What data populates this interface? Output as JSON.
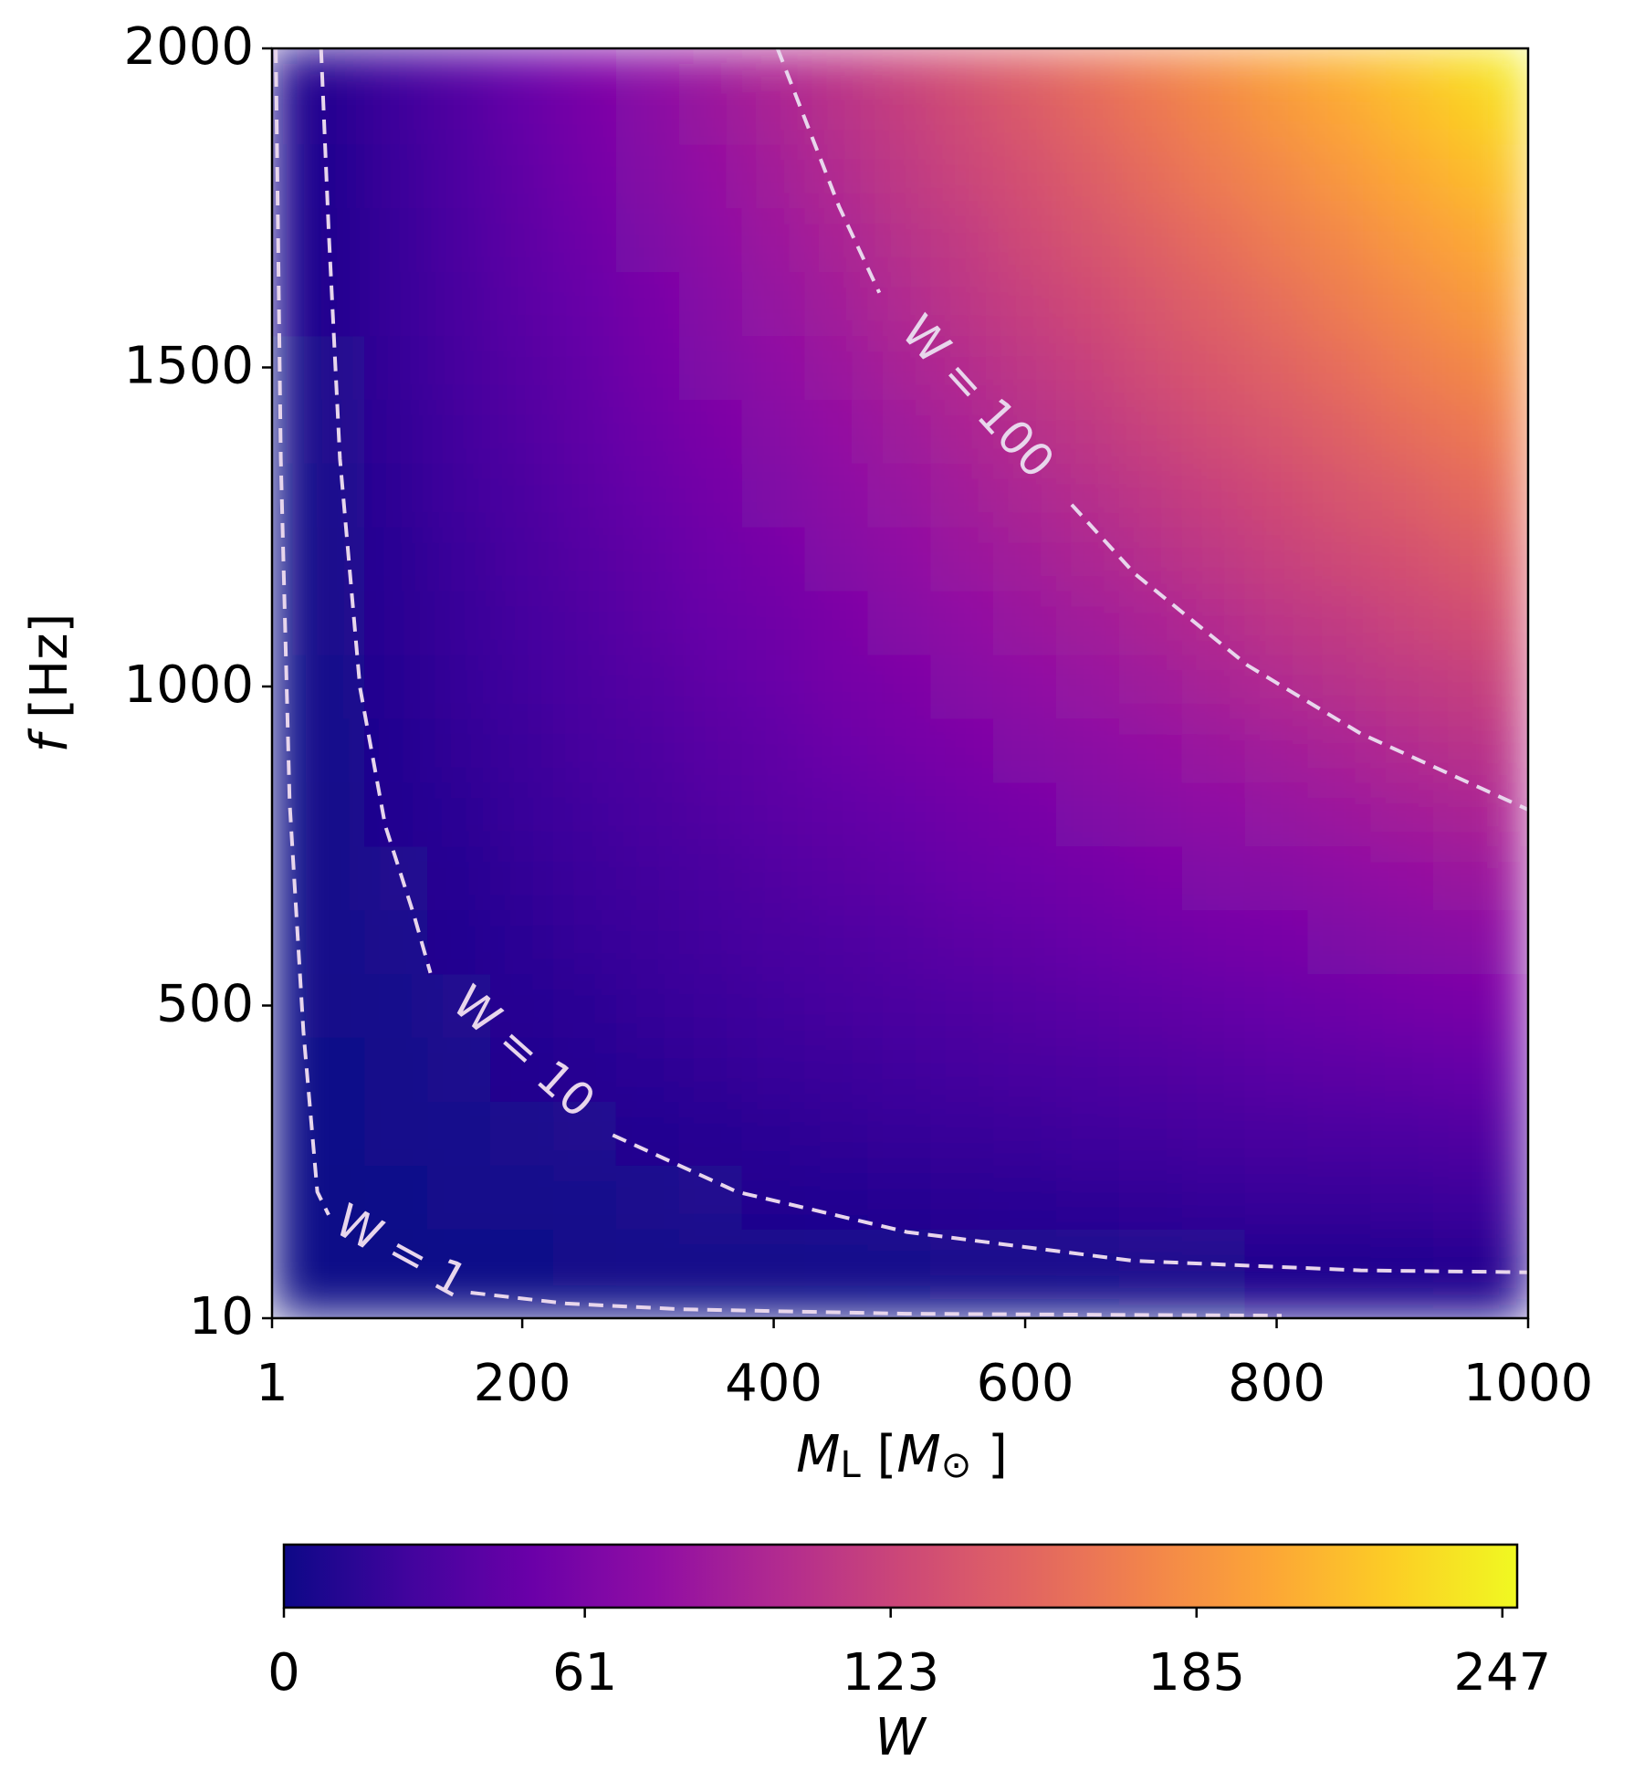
{
  "chart_data": {
    "type": "contour",
    "x": [
      1,
      50,
      100,
      150,
      200,
      250,
      300,
      350,
      400,
      450,
      500,
      550,
      600,
      650,
      700,
      750,
      800,
      850,
      900,
      950,
      1000
    ],
    "y": [
      10,
      100,
      200,
      300,
      400,
      500,
      600,
      700,
      800,
      900,
      1000,
      1100,
      1200,
      1300,
      1400,
      1500,
      1600,
      1700,
      1800,
      1900,
      2000
    ],
    "z": [
      [
        0,
        0,
        0,
        0,
        0,
        0,
        0,
        0,
        0,
        0,
        1,
        1,
        1,
        1,
        1,
        1,
        1,
        1,
        1,
        1,
        1
      ],
      [
        0,
        1,
        1,
        2,
        2,
        3,
        4,
        4,
        5,
        6,
        6,
        7,
        7,
        8,
        9,
        9,
        10,
        10,
        11,
        12,
        12
      ],
      [
        0,
        1,
        2,
        4,
        5,
        6,
        7,
        9,
        10,
        11,
        12,
        14,
        15,
        16,
        17,
        19,
        20,
        21,
        22,
        23,
        25
      ],
      [
        0,
        2,
        4,
        6,
        7,
        9,
        11,
        13,
        15,
        17,
        19,
        20,
        22,
        24,
        26,
        28,
        30,
        31,
        33,
        35,
        37
      ],
      [
        0,
        2,
        5,
        7,
        10,
        12,
        15,
        17,
        20,
        22,
        25,
        27,
        30,
        32,
        35,
        37,
        40,
        42,
        44,
        47,
        49
      ],
      [
        0,
        3,
        6,
        9,
        12,
        15,
        19,
        22,
        25,
        28,
        31,
        34,
        37,
        40,
        43,
        46,
        49,
        52,
        56,
        59,
        62
      ],
      [
        0,
        4,
        7,
        11,
        15,
        19,
        22,
        26,
        30,
        33,
        37,
        41,
        44,
        48,
        52,
        56,
        59,
        63,
        67,
        70,
        74
      ],
      [
        0,
        4,
        9,
        13,
        17,
        22,
        26,
        30,
        35,
        39,
        43,
        48,
        52,
        56,
        61,
        65,
        69,
        73,
        78,
        82,
        86
      ],
      [
        0,
        5,
        10,
        15,
        20,
        25,
        30,
        35,
        40,
        44,
        49,
        54,
        59,
        64,
        69,
        74,
        79,
        84,
        89,
        94,
        99
      ],
      [
        0,
        6,
        11,
        17,
        22,
        28,
        33,
        39,
        44,
        50,
        56,
        61,
        67,
        72,
        78,
        83,
        89,
        94,
        100,
        106,
        111
      ],
      [
        0,
        6,
        12,
        19,
        25,
        31,
        37,
        43,
        49,
        56,
        62,
        68,
        74,
        80,
        86,
        93,
        99,
        105,
        111,
        117,
        124
      ],
      [
        0,
        7,
        14,
        20,
        27,
        34,
        41,
        48,
        54,
        61,
        68,
        75,
        82,
        88,
        95,
        102,
        109,
        115,
        122,
        129,
        136
      ],
      [
        0,
        7,
        15,
        22,
        30,
        37,
        44,
        52,
        59,
        67,
        74,
        82,
        89,
        96,
        104,
        111,
        119,
        126,
        133,
        141,
        148
      ],
      [
        0,
        8,
        16,
        24,
        32,
        40,
        48,
        56,
        64,
        72,
        80,
        88,
        96,
        104,
        112,
        120,
        128,
        136,
        144,
        153,
        161
      ],
      [
        0,
        9,
        17,
        26,
        35,
        43,
        52,
        61,
        69,
        78,
        86,
        95,
        104,
        112,
        121,
        130,
        138,
        147,
        156,
        164,
        173
      ],
      [
        0,
        9,
        19,
        28,
        37,
        46,
        56,
        65,
        74,
        83,
        93,
        102,
        111,
        120,
        130,
        139,
        148,
        157,
        167,
        176,
        185
      ],
      [
        0,
        10,
        20,
        30,
        40,
        49,
        59,
        69,
        79,
        89,
        99,
        109,
        119,
        128,
        138,
        148,
        158,
        168,
        178,
        188,
        198
      ],
      [
        0,
        10,
        21,
        31,
        42,
        52,
        63,
        73,
        84,
        94,
        105,
        115,
        126,
        136,
        147,
        157,
        168,
        178,
        189,
        199,
        210
      ],
      [
        0,
        11,
        22,
        33,
        44,
        56,
        67,
        78,
        89,
        100,
        111,
        122,
        133,
        144,
        156,
        167,
        178,
        189,
        200,
        211,
        222
      ],
      [
        0,
        12,
        23,
        35,
        47,
        59,
        70,
        82,
        94,
        106,
        117,
        129,
        141,
        153,
        164,
        176,
        188,
        199,
        211,
        223,
        235
      ],
      [
        0,
        12,
        25,
        37,
        49,
        62,
        74,
        86,
        99,
        111,
        124,
        136,
        148,
        161,
        173,
        185,
        198,
        210,
        222,
        235,
        247
      ]
    ],
    "xlim": [
      1,
      1000
    ],
    "ylim": [
      10,
      2000
    ],
    "xticks": [
      1,
      200,
      400,
      600,
      800,
      1000
    ],
    "yticks": [
      10,
      500,
      1000,
      1500,
      2000
    ],
    "xlabel": [
      "M",
      "L",
      " [",
      "M",
      "⊙",
      " ]"
    ],
    "ylabel": [
      "f",
      " [Hz]"
    ],
    "colormap": "plasma",
    "colorbar": {
      "label": "W",
      "lim": [
        0,
        250
      ],
      "ticks": [
        0,
        61,
        123,
        185,
        247
      ]
    },
    "contour_color": "#e8d6ec",
    "contours": [
      {
        "label": "W = 1",
        "x": [
          4,
          8,
          15,
          26,
          37,
          46,
          null,
          159,
          235,
          326,
          506,
          804
        ],
        "y": [
          2000,
          1357,
          818,
          459,
          208,
          172,
          null,
          50,
          33,
          24,
          17,
          14
        ]
      },
      {
        "label": "W = 10",
        "x": [
          40,
          46,
          55,
          71,
          91,
          114,
          127,
          null,
          272,
          371,
          506,
          686,
          867,
          1000
        ],
        "y": [
          2000,
          1716,
          1357,
          998,
          782,
          641,
          551,
          null,
          297,
          208,
          145,
          100,
          85,
          82
        ]
      },
      {
        "label": "W = 100",
        "x": [
          403,
          452,
          484,
          null,
          637,
          687,
          777,
          867,
          1000
        ],
        "y": [
          2000,
          1752,
          1617,
          null,
          1285,
          1177,
          1033,
          926,
          807
        ]
      }
    ]
  }
}
